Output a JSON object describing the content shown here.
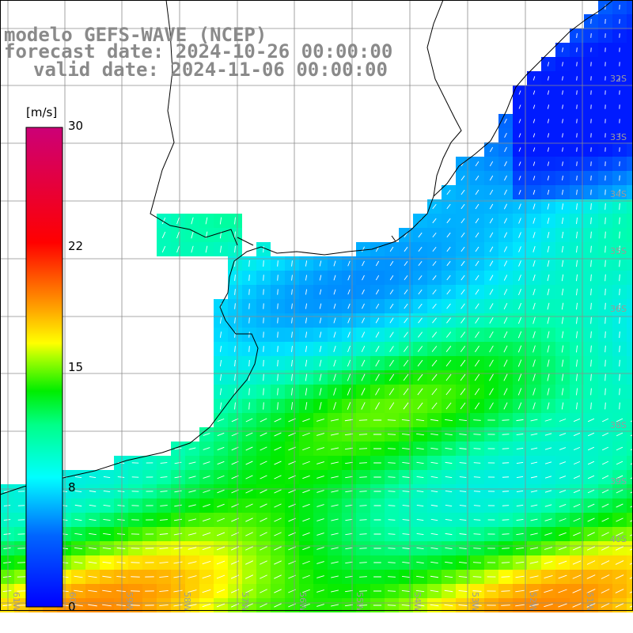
{
  "title": {
    "line1": "modelo GEFS-WAVE (NCEP)",
    "line2": "forecast date: 2024-10-26 00:00:00",
    "line3": "valid date: 2024-11-06 00:00:00"
  },
  "colorbar": {
    "unit": "[m/s]",
    "ticks": [
      {
        "label": "30",
        "value": 30
      },
      {
        "label": "22",
        "value": 22
      },
      {
        "label": "15",
        "value": 15
      },
      {
        "label": "8",
        "value": 8
      },
      {
        "label": "0",
        "value": 0
      }
    ],
    "colors": [
      "#0000ff",
      "#0066ff",
      "#00ccff",
      "#00ffcc",
      "#00ff00",
      "#aaff00",
      "#ffff00",
      "#ff9900",
      "#ff0000",
      "#cc0088"
    ]
  },
  "grid": {
    "lat_labels": [
      "32S",
      "33S",
      "34S",
      "35S",
      "36S",
      "38S",
      "39S",
      "40S"
    ],
    "lon_labels": [
      "61W",
      "60W",
      "59W",
      "58W",
      "57W",
      "56W",
      "55W",
      "54W",
      "53W",
      "52W",
      "51W"
    ]
  }
}
